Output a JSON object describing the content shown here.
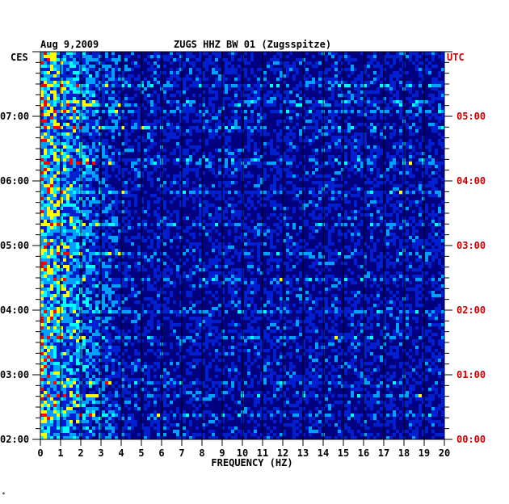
{
  "chart_data": {
    "type": "heatmap",
    "date_label": "Aug 9,2009",
    "title": "ZUGS HHZ BW 01 (Zugsspitze)",
    "xlabel": "FREQUENCY (HZ)",
    "left_axis_label": "CES",
    "right_axis_label": "UTC",
    "x_ticks": [
      "0",
      "1",
      "2",
      "3",
      "4",
      "5",
      "6",
      "7",
      "8",
      "9",
      "10",
      "11",
      "12",
      "13",
      "14",
      "15",
      "16",
      "17",
      "18",
      "19",
      "20"
    ],
    "xlim": [
      0,
      20
    ],
    "left_time_ticks": [
      "07:00",
      "06:00",
      "05:00",
      "04:00",
      "03:00",
      "02:00"
    ],
    "right_time_ticks": [
      "05:00",
      "04:00",
      "03:00",
      "02:00",
      "01:00",
      "00:00"
    ],
    "time_range_ces": [
      "02:00",
      "08:00"
    ],
    "colors": {
      "background": "#000080",
      "low": "#0020d0",
      "mid": "#00a0ff",
      "high": "#00ffff",
      "peak": "#ffff00",
      "max": "#ff0000",
      "left_labels": "#000000",
      "right_labels": "#cc0000"
    },
    "footer_mark": "*"
  }
}
